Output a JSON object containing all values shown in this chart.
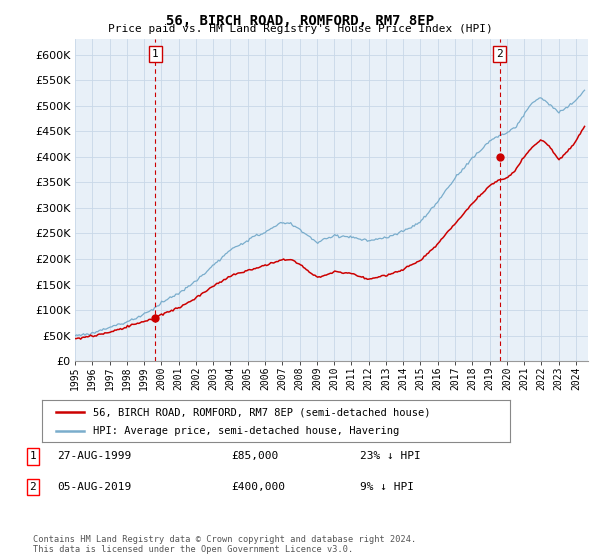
{
  "title": "56, BIRCH ROAD, ROMFORD, RM7 8EP",
  "subtitle": "Price paid vs. HM Land Registry's House Price Index (HPI)",
  "ylim": [
    0,
    630000
  ],
  "yticks": [
    0,
    50000,
    100000,
    150000,
    200000,
    250000,
    300000,
    350000,
    400000,
    450000,
    500000,
    550000,
    600000
  ],
  "xlim_start": 1995.3,
  "xlim_end": 2024.7,
  "sale1_year": 1999.65,
  "sale1_price": 85000,
  "sale1_label": "1",
  "sale2_year": 2019.58,
  "sale2_price": 400000,
  "sale2_label": "2",
  "red_line_color": "#cc0000",
  "blue_line_color": "#7aadcc",
  "plot_bg_color": "#e8f0f8",
  "vline_color": "#cc0000",
  "grid_color": "#c8d8e8",
  "background_color": "#ffffff",
  "legend_label_red": "56, BIRCH ROAD, ROMFORD, RM7 8EP (semi-detached house)",
  "legend_label_blue": "HPI: Average price, semi-detached house, Havering",
  "annotation1_date": "27-AUG-1999",
  "annotation1_price": "£85,000",
  "annotation1_hpi": "23% ↓ HPI",
  "annotation2_date": "05-AUG-2019",
  "annotation2_price": "£400,000",
  "annotation2_hpi": "9% ↓ HPI",
  "footnote": "Contains HM Land Registry data © Crown copyright and database right 2024.\nThis data is licensed under the Open Government Licence v3.0."
}
